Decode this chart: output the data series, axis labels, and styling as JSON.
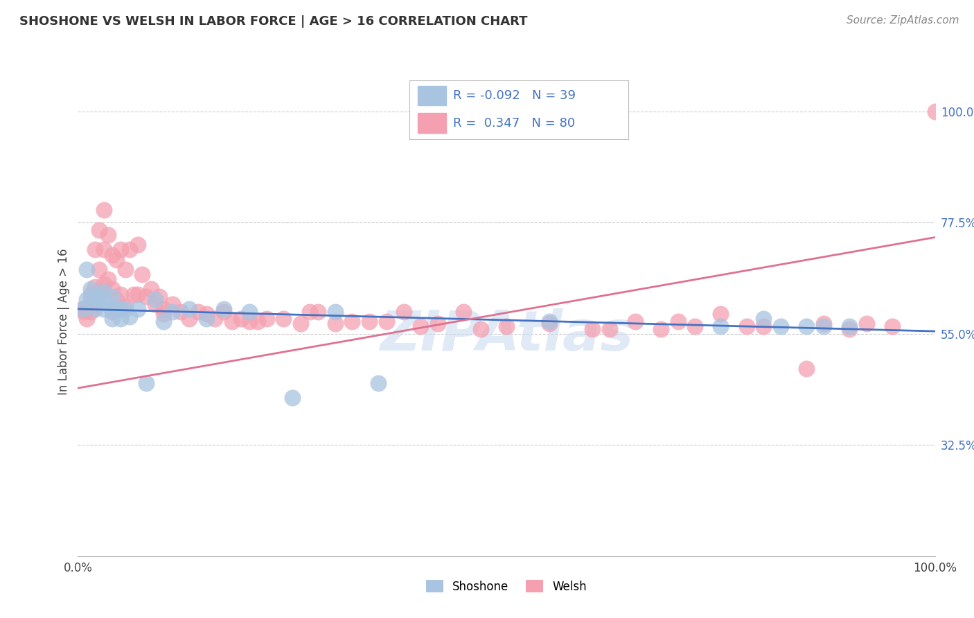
{
  "title": "SHOSHONE VS WELSH IN LABOR FORCE | AGE > 16 CORRELATION CHART",
  "source": "Source: ZipAtlas.com",
  "ylabel": "In Labor Force | Age > 16",
  "xlim": [
    0.0,
    1.0
  ],
  "ylim": [
    0.1,
    1.05
  ],
  "right_yticks": [
    0.325,
    0.55,
    0.775,
    1.0
  ],
  "right_yticklabels": [
    "32.5%",
    "55.0%",
    "77.5%",
    "100.0%"
  ],
  "xticks": [
    0.0,
    1.0
  ],
  "xticklabels": [
    "0.0%",
    "100.0%"
  ],
  "shoshone_color": "#a8c4e0",
  "welsh_color": "#f4a0b0",
  "shoshone_line_color": "#4472c4",
  "welsh_line_color": "#e07090",
  "R_shoshone": -0.092,
  "N_shoshone": 39,
  "R_welsh": 0.347,
  "N_welsh": 80,
  "watermark": "ZIPAtlas",
  "background_color": "#ffffff",
  "grid_color": "#cccccc",
  "blue_line_start": 0.6,
  "blue_line_end": 0.555,
  "pink_line_start": 0.44,
  "pink_line_end": 0.745,
  "shoshone_x": [
    0.005,
    0.01,
    0.01,
    0.015,
    0.015,
    0.02,
    0.02,
    0.025,
    0.025,
    0.03,
    0.03,
    0.035,
    0.04,
    0.04,
    0.04,
    0.045,
    0.05,
    0.05,
    0.055,
    0.06,
    0.07,
    0.08,
    0.09,
    0.1,
    0.11,
    0.13,
    0.15,
    0.17,
    0.2,
    0.25,
    0.3,
    0.35,
    0.55,
    0.75,
    0.8,
    0.82,
    0.85,
    0.87,
    0.9
  ],
  "shoshone_y": [
    0.6,
    0.62,
    0.68,
    0.625,
    0.64,
    0.625,
    0.6,
    0.63,
    0.62,
    0.6,
    0.635,
    0.61,
    0.625,
    0.6,
    0.58,
    0.6,
    0.6,
    0.58,
    0.6,
    0.585,
    0.6,
    0.45,
    0.62,
    0.575,
    0.595,
    0.6,
    0.58,
    0.6,
    0.595,
    0.42,
    0.595,
    0.45,
    0.575,
    0.565,
    0.58,
    0.565,
    0.565,
    0.565,
    0.565
  ],
  "welsh_x": [
    0.005,
    0.007,
    0.01,
    0.01,
    0.015,
    0.015,
    0.015,
    0.02,
    0.02,
    0.02,
    0.025,
    0.025,
    0.025,
    0.03,
    0.03,
    0.03,
    0.035,
    0.035,
    0.04,
    0.04,
    0.04,
    0.045,
    0.045,
    0.05,
    0.05,
    0.055,
    0.055,
    0.06,
    0.065,
    0.07,
    0.07,
    0.075,
    0.08,
    0.085,
    0.09,
    0.095,
    0.1,
    0.1,
    0.11,
    0.12,
    0.13,
    0.14,
    0.15,
    0.16,
    0.17,
    0.18,
    0.19,
    0.2,
    0.21,
    0.22,
    0.24,
    0.26,
    0.27,
    0.28,
    0.3,
    0.32,
    0.34,
    0.36,
    0.38,
    0.4,
    0.42,
    0.45,
    0.47,
    0.5,
    0.55,
    0.6,
    0.62,
    0.65,
    0.68,
    0.7,
    0.72,
    0.75,
    0.78,
    0.8,
    0.85,
    0.87,
    0.9,
    0.92,
    0.95,
    1.0
  ],
  "welsh_y": [
    0.6,
    0.595,
    0.6,
    0.58,
    0.63,
    0.615,
    0.595,
    0.72,
    0.645,
    0.605,
    0.76,
    0.68,
    0.635,
    0.8,
    0.72,
    0.65,
    0.75,
    0.66,
    0.71,
    0.64,
    0.595,
    0.7,
    0.62,
    0.72,
    0.63,
    0.68,
    0.605,
    0.72,
    0.63,
    0.73,
    0.63,
    0.67,
    0.625,
    0.64,
    0.61,
    0.625,
    0.6,
    0.59,
    0.61,
    0.595,
    0.58,
    0.595,
    0.59,
    0.58,
    0.595,
    0.575,
    0.58,
    0.575,
    0.575,
    0.58,
    0.58,
    0.57,
    0.595,
    0.595,
    0.57,
    0.575,
    0.575,
    0.575,
    0.595,
    0.565,
    0.57,
    0.595,
    0.56,
    0.565,
    0.57,
    0.56,
    0.56,
    0.575,
    0.56,
    0.575,
    0.565,
    0.59,
    0.565,
    0.565,
    0.48,
    0.57,
    0.56,
    0.57,
    0.565,
    1.0
  ]
}
